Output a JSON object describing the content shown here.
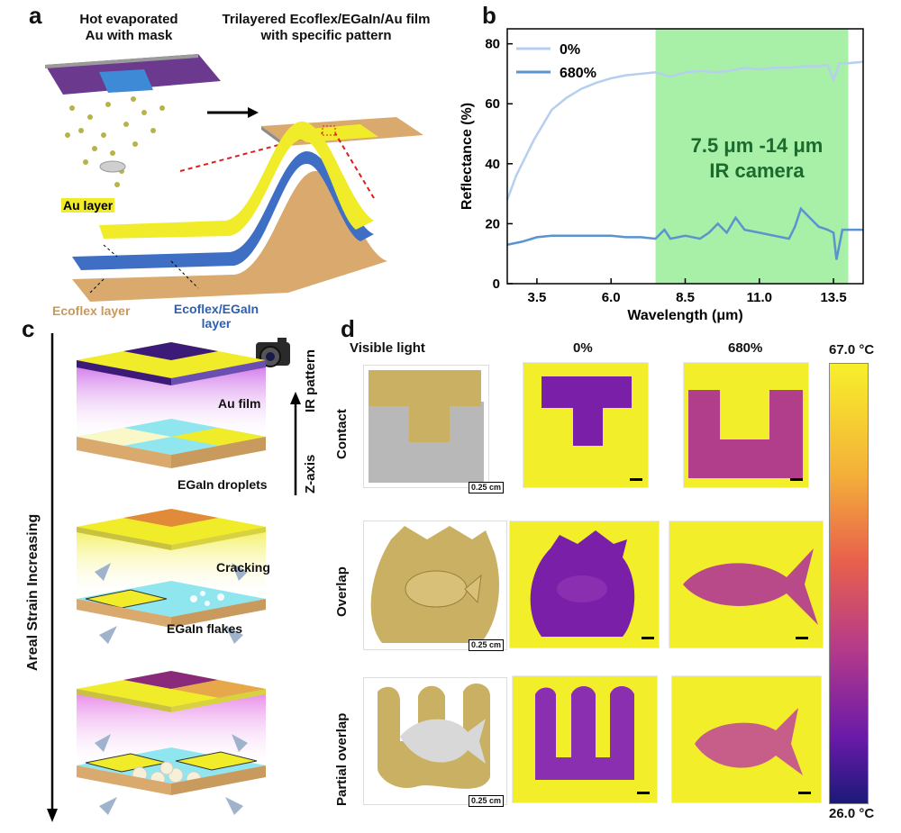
{
  "panel_a": {
    "label": "a",
    "title_left": "Hot evaporated\nAu with mask",
    "title_right": "Trilayered Ecoflex/EGaIn/Au film\nwith specific pattern",
    "label_au_layer": "Au layer",
    "label_ecoflex_layer": "Ecoflex layer",
    "label_ecoflex_egain": "Ecoflex/EGaIn\nlayer"
  },
  "panel_b": {
    "label": "b",
    "annotation": "7.5 μm -14 μm\nIR camera"
  },
  "chart_data": {
    "type": "line",
    "xlabel": "Wavelength  (μm)",
    "ylabel": "Reflectance  (%)",
    "xlim": [
      2.5,
      14.5
    ],
    "ylim": [
      0,
      85
    ],
    "xticks": [
      3.5,
      6.0,
      8.5,
      11.0,
      13.5
    ],
    "xtick_labels": [
      "3.5",
      "6.0",
      "8.5",
      "11.0",
      "13.5"
    ],
    "yticks": [
      0,
      20,
      40,
      60,
      80
    ],
    "highlight_band": [
      7.5,
      14.0
    ],
    "legend_position": "top-left",
    "series": [
      {
        "name": "0%",
        "color": "#b5cfee",
        "x": [
          2.5,
          2.8,
          3.1,
          3.4,
          3.7,
          4.0,
          4.5,
          5.0,
          5.5,
          6.0,
          6.5,
          7.0,
          7.5,
          8.0,
          8.5,
          9.0,
          9.5,
          10.0,
          10.5,
          11.0,
          11.5,
          12.0,
          12.5,
          13.0,
          13.3,
          13.5,
          13.7,
          14.0,
          14.5
        ],
        "y": [
          28,
          36,
          42,
          48,
          53,
          58,
          62,
          65,
          67,
          68.5,
          69.5,
          70,
          70.5,
          69,
          70.5,
          71,
          70.5,
          71,
          72,
          71.5,
          72,
          72,
          72.5,
          72.5,
          73,
          68,
          73.5,
          73.5,
          74
        ]
      },
      {
        "name": "680%",
        "color": "#5b93cf",
        "x": [
          2.5,
          3.0,
          3.5,
          4.0,
          4.5,
          5.0,
          5.5,
          6.0,
          6.5,
          7.0,
          7.5,
          7.8,
          8.0,
          8.5,
          9.0,
          9.3,
          9.6,
          9.9,
          10.2,
          10.5,
          11.0,
          11.5,
          12.0,
          12.2,
          12.4,
          12.7,
          13.0,
          13.3,
          13.5,
          13.6,
          13.8,
          14.0,
          14.5
        ],
        "y": [
          13,
          14,
          15.5,
          16,
          16,
          16,
          16,
          16,
          15.5,
          15.5,
          15,
          18,
          15,
          16,
          15,
          17,
          20,
          17,
          22,
          18,
          17,
          16,
          15,
          19,
          25,
          22,
          19,
          18,
          17,
          8,
          18,
          18,
          18
        ]
      }
    ]
  },
  "panel_c": {
    "label": "c",
    "axis_label": "Areal Strain Increasing",
    "zaxis_label": "Z-axis",
    "ir_label": "IR pattern",
    "label_au_film": "Au film",
    "label_egain_droplets": "EGaIn droplets",
    "label_cracking": "Cracking",
    "label_egain_flakes": "EGaIn flakes"
  },
  "panel_d": {
    "label": "d",
    "col_headers": [
      "Visible light",
      "0%",
      "680%"
    ],
    "row_headers": [
      "Contact",
      "Overlap",
      "Partial overlap"
    ],
    "scale_text": "0.25 cm",
    "colorbar_max": "67.0 °C",
    "colorbar_min": "26.0 °C"
  },
  "colors": {
    "band": "#a8f0a8",
    "band_text": "#1c6b2e",
    "ir_bg": "#f2ef2a",
    "ir_cold": "#7a1fa8",
    "gold": "#c9b062"
  }
}
